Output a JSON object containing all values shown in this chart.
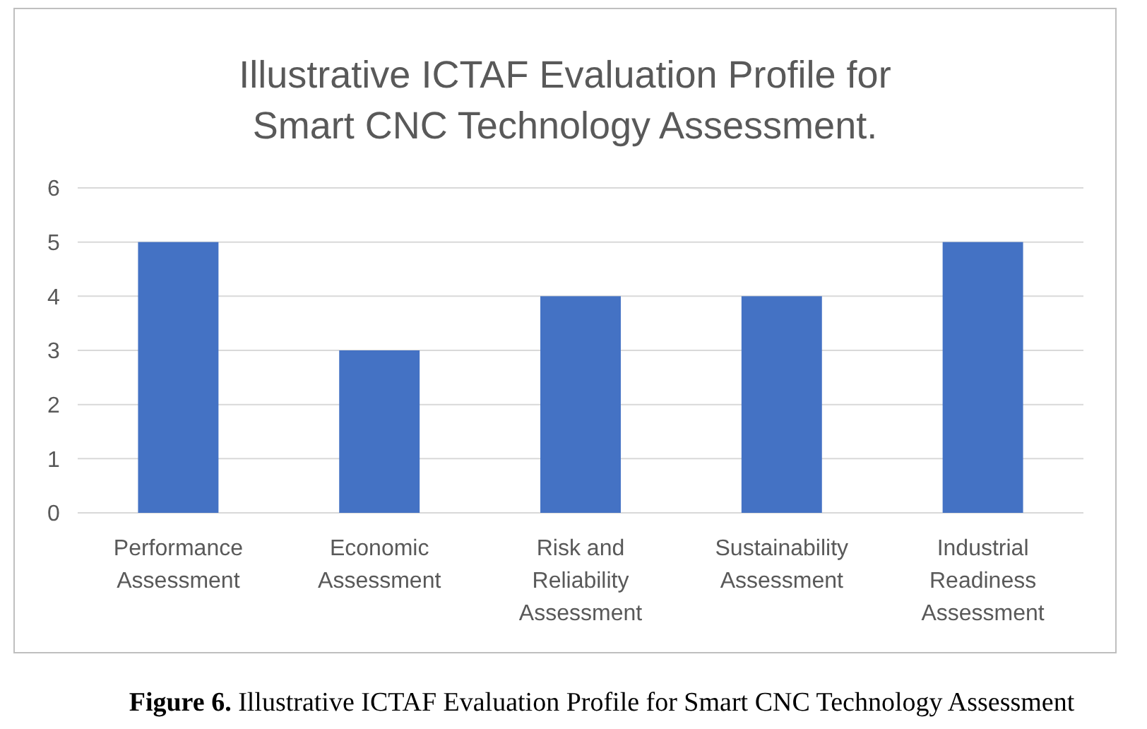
{
  "chart_data": {
    "type": "bar",
    "title": "Illustrative ICTAF Evaluation Profile for Smart CNC Technology Assessment.",
    "categories": [
      "Performance Assessment",
      "Economic Assessment",
      "Risk and Reliability Assessment",
      "Sustainability Assessment",
      "Industrial Readiness Assessment"
    ],
    "values": [
      5,
      3,
      4,
      4,
      5
    ],
    "color": "#4472c4",
    "ylim": [
      0,
      6
    ],
    "yticks": [
      0,
      1,
      2,
      3,
      4,
      5,
      6
    ],
    "grid": "y",
    "annotations": [
      "Figure 6. Illustrative ICTAF Evaluation Profile for Smart CNC Technology Assessment"
    ]
  }
}
